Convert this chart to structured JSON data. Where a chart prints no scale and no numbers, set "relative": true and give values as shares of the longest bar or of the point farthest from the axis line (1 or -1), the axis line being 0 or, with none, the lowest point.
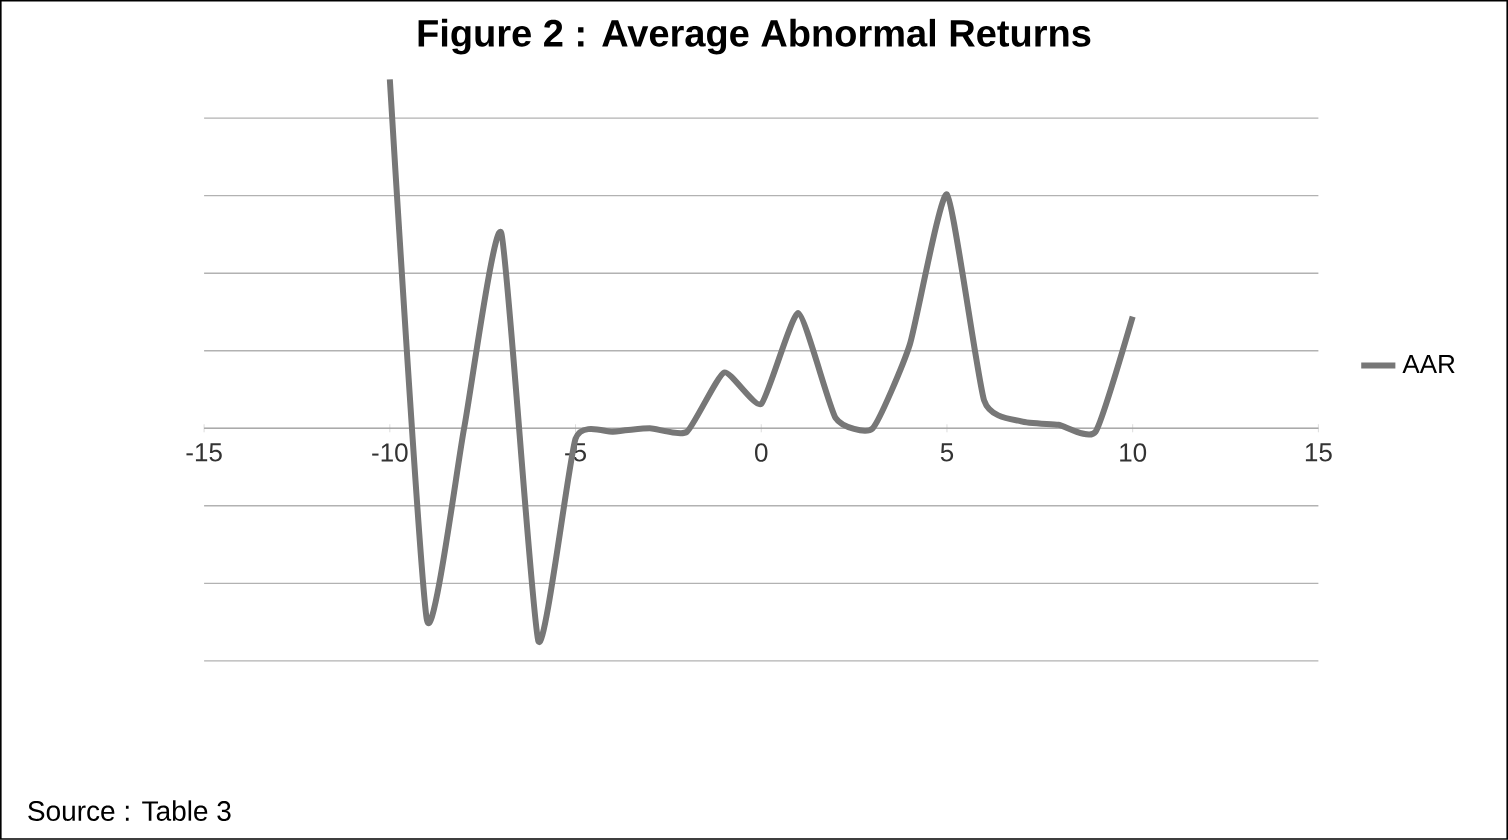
{
  "chart_data": {
    "type": "line",
    "title": "Figure 2 : Average Abnormal Returns",
    "relative": true,
    "x": [
      -10,
      -9,
      -8,
      -7,
      -6,
      -5,
      -4,
      -3,
      -2,
      -1,
      0,
      1,
      2,
      3,
      4,
      5,
      6,
      7,
      8,
      9,
      10
    ],
    "series": [
      {
        "name": "AAR",
        "color": "#777777",
        "values": [
          1,
          -0.55,
          0,
          0.56,
          -0.61,
          -0.03,
          -0.01,
          0,
          -0.01,
          0.16,
          0.07,
          0.33,
          0.03,
          0,
          0.24,
          0.67,
          0.08,
          0.02,
          0.01,
          -0.01,
          0.32
        ]
      }
    ],
    "xlim": [
      -15,
      15
    ],
    "xticks": [
      -15,
      -10,
      -5,
      0,
      5,
      10,
      15
    ],
    "grid": "y",
    "legend": "right",
    "marker": "none",
    "line_style": "solid",
    "annotations": [
      "Source : Table 3"
    ]
  }
}
